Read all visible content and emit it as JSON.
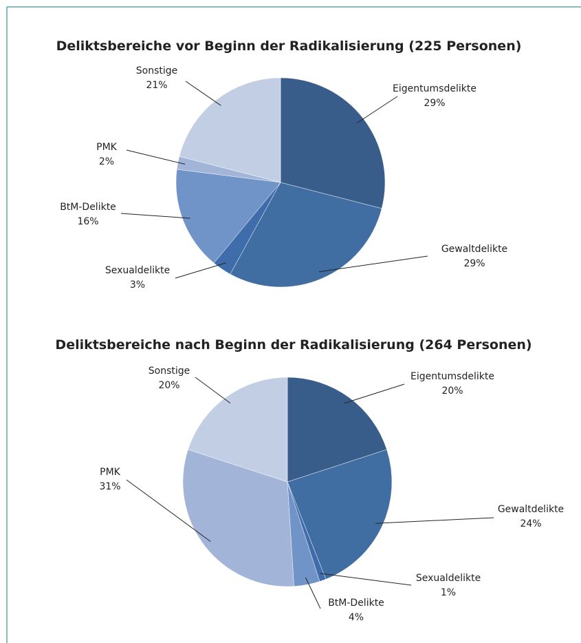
{
  "chart_data": [
    {
      "type": "pie",
      "title": "Deliktsbereiche vor Beginn der Radikalisierung (225 Personen)",
      "categories": [
        "Eigentumsdelikte",
        "Gewaltdelikte",
        "Sexualdelikte",
        "BtM-Delikte",
        "PMK",
        "Sonstige"
      ],
      "values": [
        29,
        29,
        3,
        16,
        2,
        21
      ],
      "value_labels": [
        "29%",
        "29%",
        "3%",
        "16%",
        "2%",
        "21%"
      ],
      "colors": [
        "#385d8a",
        "#416ea2",
        "#3f6dab",
        "#7094c7",
        "#a2b4d8",
        "#c2cee3"
      ]
    },
    {
      "type": "pie",
      "title": "Deliktsbereiche nach Beginn der Radikalisierung (264 Personen)",
      "categories": [
        "Eigentumsdelikte",
        "Gewaltdelikte",
        "Sexualdelikte",
        "BtM-Delikte",
        "PMK",
        "Sonstige"
      ],
      "values": [
        20,
        24,
        1,
        4,
        31,
        20
      ],
      "value_labels": [
        "20%",
        "24%",
        "1%",
        "4%",
        "31%",
        "20%"
      ],
      "colors": [
        "#385d8a",
        "#416ea2",
        "#3f6dab",
        "#7094c7",
        "#a2b4d8",
        "#c2cee3"
      ]
    }
  ]
}
